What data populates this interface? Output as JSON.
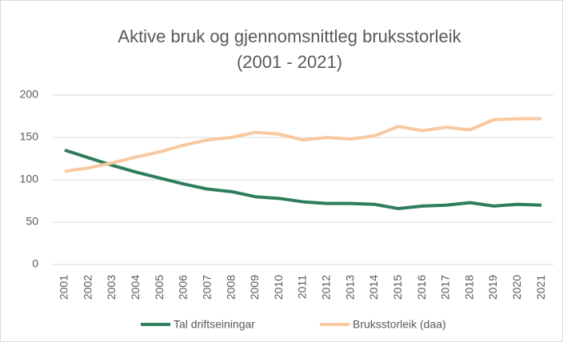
{
  "chart_data": {
    "type": "line",
    "title_lines": [
      "Aktive bruk og gjennomsnittleg bruksstorleik",
      "(2001 - 2021)"
    ],
    "categories": [
      "2001",
      "2002",
      "2003",
      "2004",
      "2005",
      "2006",
      "2007",
      "2008",
      "2009",
      "2010",
      "2011",
      "2012",
      "2013",
      "2014",
      "2015",
      "2016",
      "2017",
      "2018",
      "2019",
      "2020",
      "2021"
    ],
    "series": [
      {
        "name": "Tal driftseiningar",
        "color": "#2e7d5b",
        "values": [
          135,
          126,
          117,
          109,
          102,
          95,
          89,
          86,
          80,
          78,
          74,
          72,
          72,
          71,
          66,
          69,
          70,
          73,
          69,
          71,
          70
        ]
      },
      {
        "name": "Bruksstorleik (daa)",
        "color": "#f8c9a0",
        "values": [
          110,
          114,
          120,
          127,
          133,
          141,
          147,
          150,
          156,
          154,
          147,
          150,
          148,
          152,
          163,
          158,
          162,
          159,
          171,
          172,
          172
        ]
      }
    ],
    "ylim": [
      0,
      200
    ],
    "yticks": [
      0,
      50,
      100,
      150,
      200
    ],
    "grid": true,
    "legend": "bottom"
  }
}
